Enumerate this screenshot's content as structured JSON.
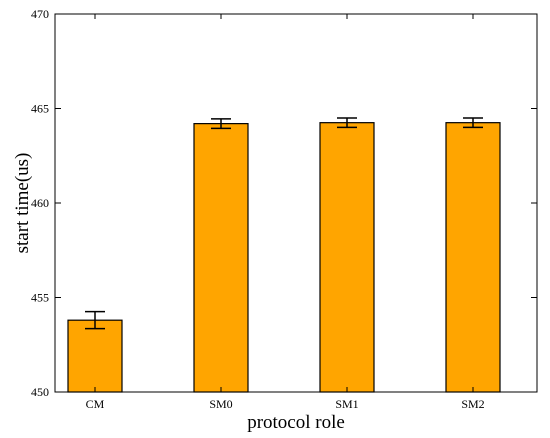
{
  "chart_data": {
    "type": "bar",
    "title": "",
    "xlabel": "protocol role",
    "ylabel": "start time(us)",
    "categories": [
      "CM",
      "SM0",
      "SM1",
      "SM2"
    ],
    "values": [
      453.8,
      464.2,
      464.25,
      464.25
    ],
    "errors": [
      0.45,
      0.25,
      0.25,
      0.25
    ],
    "ylim": [
      450,
      470
    ],
    "yticks": [
      450,
      455,
      460,
      465,
      470
    ],
    "ytick_labels": [
      "450",
      "455",
      "460",
      "465",
      "470"
    ],
    "grid": false,
    "legend": "none",
    "bar_color": "#FFA500",
    "edge_color": "#000000"
  }
}
